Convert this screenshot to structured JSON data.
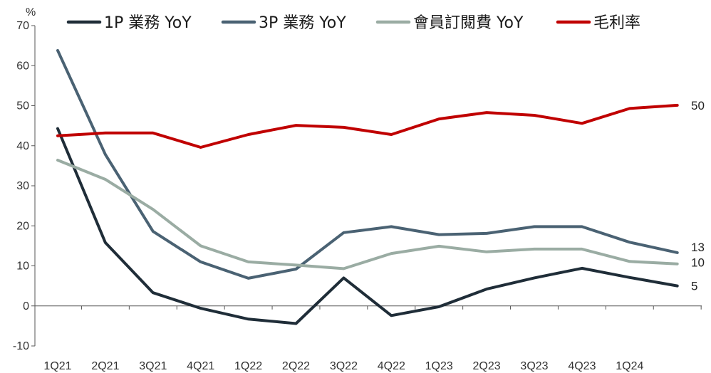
{
  "chart_data": {
    "type": "line",
    "ylabel": "%",
    "ylim": [
      -10,
      70
    ],
    "yticks": [
      -10,
      0,
      10,
      20,
      30,
      40,
      50,
      60,
      70
    ],
    "grid": false,
    "legend_position": "top",
    "categories": [
      "1Q21",
      "2Q21",
      "3Q21",
      "4Q21",
      "1Q22",
      "2Q22",
      "3Q22",
      "4Q22",
      "1Q23",
      "2Q23",
      "3Q23",
      "4Q23",
      "1Q24",
      ""
    ],
    "series": [
      {
        "name": "1P 業務 YoY",
        "color": "#1f2d38",
        "values": [
          44.3,
          15.8,
          3.3,
          -0.6,
          -3.3,
          -4.4,
          7.0,
          -2.4,
          -0.2,
          4.2,
          7.0,
          9.4,
          7.1,
          5.0
        ],
        "end_label": "5"
      },
      {
        "name": "3P 業務 YoY",
        "color": "#4a6273",
        "values": [
          63.8,
          37.8,
          18.6,
          11.0,
          6.9,
          9.2,
          18.3,
          19.8,
          17.8,
          18.1,
          19.8,
          19.8,
          15.9,
          13.3
        ],
        "end_label": "13"
      },
      {
        "name": "會員訂閱費 YoY",
        "color": "#9aaca3",
        "values": [
          36.4,
          31.6,
          24.1,
          15.0,
          11.0,
          10.2,
          9.3,
          13.1,
          14.9,
          13.5,
          14.2,
          14.2,
          11.1,
          10.5
        ],
        "end_label": "10"
      },
      {
        "name": "毛利率",
        "color": "#c00000",
        "values": [
          42.5,
          43.2,
          43.2,
          39.6,
          42.8,
          45.1,
          44.6,
          42.8,
          46.7,
          48.3,
          47.6,
          45.6,
          49.3,
          50.1
        ],
        "end_label": "50"
      }
    ]
  }
}
